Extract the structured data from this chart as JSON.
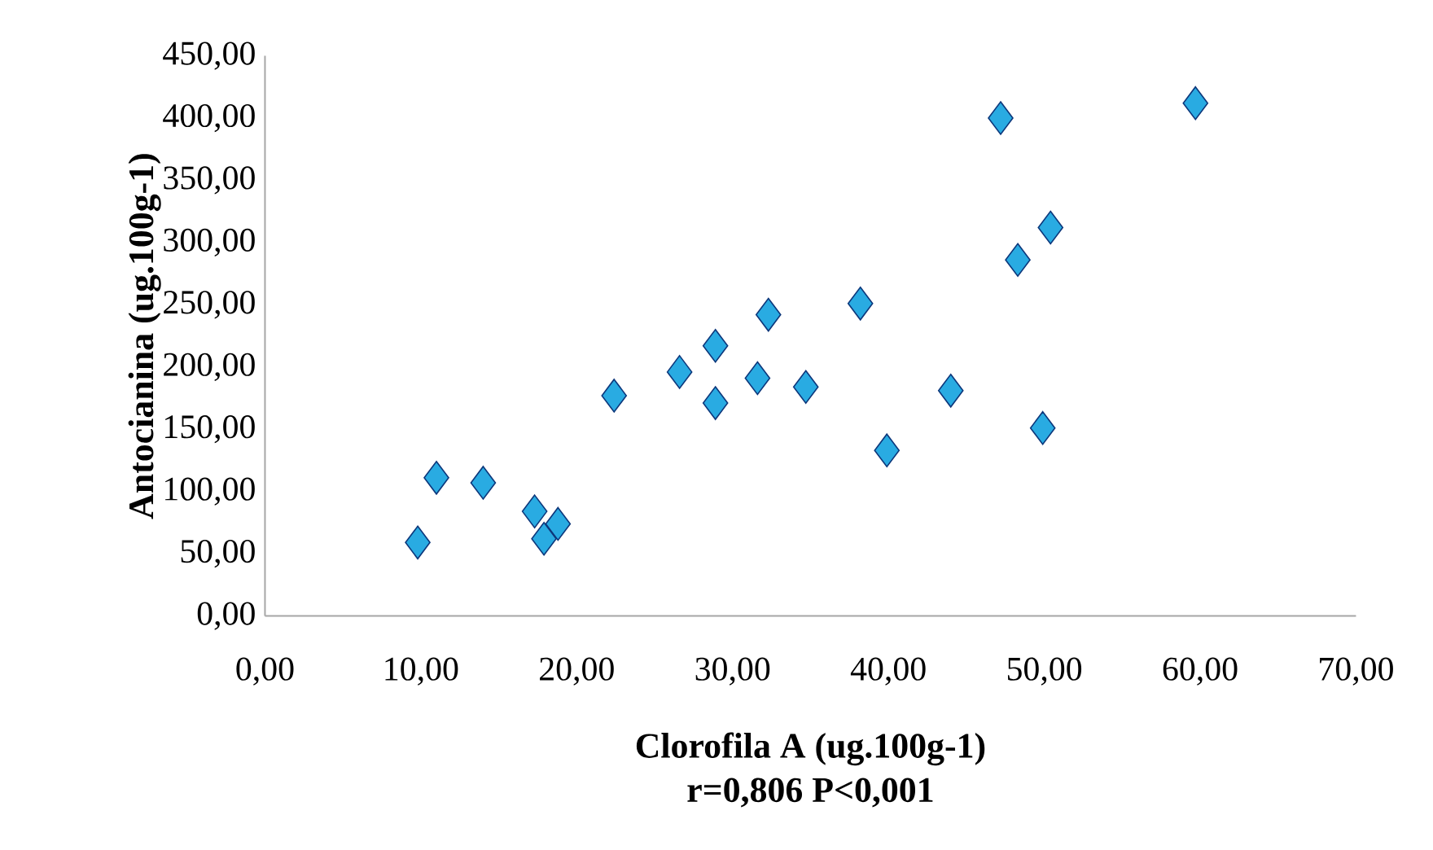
{
  "chart_data": {
    "type": "scatter",
    "xlabel": "Clorofila A (ug.100g-1)",
    "ylabel": "Antocianina (ug.100g-1)",
    "annotations": [
      "r=0,806  P<0,001"
    ],
    "x": [
      9.8,
      11.0,
      14.0,
      17.3,
      18.8,
      17.9,
      22.4,
      26.6,
      28.9,
      28.9,
      32.3,
      31.6,
      34.7,
      38.2,
      39.9,
      44.0,
      47.2,
      48.3,
      50.4,
      49.9,
      59.7
    ],
    "values": [
      59,
      111,
      107,
      84,
      74,
      62,
      177,
      196,
      217,
      171,
      242,
      191,
      184,
      251,
      133,
      181,
      400,
      286,
      312,
      151,
      412
    ],
    "color": "#29abe2",
    "marker": "diamond",
    "xlim": [
      0,
      70
    ],
    "ylim": [
      0,
      450
    ],
    "xticks": [
      {
        "value": 0,
        "label": "0,00"
      },
      {
        "value": 10,
        "label": "10,00"
      },
      {
        "value": 20,
        "label": "20,00"
      },
      {
        "value": 30,
        "label": "30,00"
      },
      {
        "value": 40,
        "label": "40,00"
      },
      {
        "value": 50,
        "label": "50,00"
      },
      {
        "value": 60,
        "label": "60,00"
      },
      {
        "value": 70,
        "label": "70,00"
      }
    ],
    "yticks": [
      {
        "value": 0,
        "label": "0,00"
      },
      {
        "value": 50,
        "label": "50,00"
      },
      {
        "value": 100,
        "label": "100,00"
      },
      {
        "value": 150,
        "label": "150,00"
      },
      {
        "value": 200,
        "label": "200,00"
      },
      {
        "value": 250,
        "label": "250,00"
      },
      {
        "value": 300,
        "label": "300,00"
      },
      {
        "value": 350,
        "label": "350,00"
      },
      {
        "value": 400,
        "label": "400,00"
      },
      {
        "value": 450,
        "label": "450,00"
      }
    ]
  }
}
